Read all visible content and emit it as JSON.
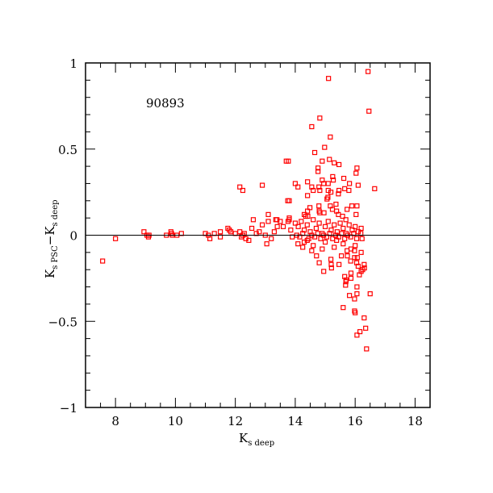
{
  "chart_data": {
    "type": "scatter",
    "title": "",
    "annotation": "90893",
    "xlabel": {
      "main": "K",
      "sub": "s deep"
    },
    "ylabel": {
      "main1": "K",
      "sub1": "s PSC",
      "dash": "−",
      "main2": "K",
      "sub2": "s deep"
    },
    "xlim": [
      7,
      18.5
    ],
    "ylim": [
      -1,
      1
    ],
    "xticks": [
      8,
      10,
      12,
      14,
      16,
      18
    ],
    "xtick_labels": [
      "8",
      "10",
      "12",
      "14",
      "16",
      "18"
    ],
    "yticks": [
      -1,
      -0.5,
      0,
      0.5,
      1
    ],
    "ytick_labels": [
      "−1",
      "−0.5",
      "0",
      "0.5",
      "1"
    ],
    "reference_line_y": 0,
    "marker": "open-square",
    "color": "#ff0000",
    "points": [
      [
        7.57,
        -0.15
      ],
      [
        8.0,
        -0.02
      ],
      [
        8.95,
        0.02
      ],
      [
        9.05,
        0.0
      ],
      [
        9.1,
        -0.01
      ],
      [
        9.12,
        0.0
      ],
      [
        9.7,
        0.0
      ],
      [
        9.85,
        0.02
      ],
      [
        9.87,
        0.01
      ],
      [
        9.9,
        0.0
      ],
      [
        10.05,
        0.0
      ],
      [
        10.2,
        0.01
      ],
      [
        11.0,
        0.01
      ],
      [
        11.1,
        0.0
      ],
      [
        11.15,
        -0.02
      ],
      [
        11.3,
        0.01
      ],
      [
        11.5,
        0.02
      ],
      [
        11.5,
        -0.01
      ],
      [
        11.75,
        0.04
      ],
      [
        11.8,
        0.03
      ],
      [
        11.85,
        0.02
      ],
      [
        12.0,
        0.01
      ],
      [
        12.15,
        0.28
      ],
      [
        12.25,
        0.26
      ],
      [
        12.15,
        0.02
      ],
      [
        12.2,
        -0.01
      ],
      [
        12.25,
        0.0
      ],
      [
        12.3,
        0.01
      ],
      [
        12.35,
        -0.02
      ],
      [
        12.45,
        -0.03
      ],
      [
        12.55,
        0.04
      ],
      [
        12.6,
        0.09
      ],
      [
        12.7,
        0.01
      ],
      [
        12.8,
        0.02
      ],
      [
        12.9,
        0.29
      ],
      [
        12.9,
        0.06
      ],
      [
        13.0,
        0.0
      ],
      [
        13.1,
        0.12
      ],
      [
        13.1,
        0.08
      ],
      [
        13.05,
        -0.05
      ],
      [
        13.2,
        -0.02
      ],
      [
        13.3,
        0.02
      ],
      [
        13.35,
        0.09
      ],
      [
        13.4,
        0.05
      ],
      [
        13.5,
        0.08
      ],
      [
        13.6,
        0.05
      ],
      [
        13.7,
        0.43
      ],
      [
        13.75,
        0.2
      ],
      [
        13.8,
        0.09
      ],
      [
        13.85,
        0.03
      ],
      [
        13.9,
        -0.01
      ],
      [
        13.39,
        0.09
      ],
      [
        13.8,
        0.1
      ],
      [
        13.76,
        0.08
      ],
      [
        16.43,
        0.95
      ],
      [
        15.11,
        0.91
      ],
      [
        16.46,
        0.72
      ],
      [
        14.82,
        0.68
      ],
      [
        14.55,
        0.63
      ],
      [
        15.17,
        0.57
      ],
      [
        14.98,
        0.51
      ],
      [
        14.65,
        0.48
      ],
      [
        14.9,
        0.43
      ],
      [
        15.14,
        0.44
      ],
      [
        13.77,
        0.43
      ],
      [
        14.76,
        0.39
      ],
      [
        14.76,
        0.37
      ],
      [
        15.3,
        0.42
      ],
      [
        15.46,
        0.41
      ],
      [
        16.06,
        0.39
      ],
      [
        16.03,
        0.36
      ],
      [
        15.25,
        0.34
      ],
      [
        15.27,
        0.32
      ],
      [
        14.9,
        0.32
      ],
      [
        14.0,
        0.3
      ],
      [
        14.09,
        0.28
      ],
      [
        14.41,
        0.31
      ],
      [
        14.95,
        0.3
      ],
      [
        15.1,
        0.3
      ],
      [
        15.1,
        0.26
      ],
      [
        15.62,
        0.33
      ],
      [
        15.81,
        0.3
      ],
      [
        16.1,
        0.29
      ],
      [
        14.55,
        0.28
      ],
      [
        14.79,
        0.28
      ],
      [
        14.6,
        0.26
      ],
      [
        14.82,
        0.26
      ],
      [
        15.46,
        0.26
      ],
      [
        15.65,
        0.27
      ],
      [
        15.79,
        0.26
      ],
      [
        16.65,
        0.27
      ],
      [
        13.8,
        0.2
      ],
      [
        14.41,
        0.23
      ],
      [
        15.09,
        0.22
      ],
      [
        15.44,
        0.24
      ],
      [
        15.19,
        0.25
      ],
      [
        15.06,
        0.21
      ],
      [
        14.49,
        0.16
      ],
      [
        14.79,
        0.17
      ],
      [
        15.17,
        0.17
      ],
      [
        15.36,
        0.18
      ],
      [
        15.89,
        0.17
      ],
      [
        16.06,
        0.17
      ],
      [
        14.41,
        0.14
      ],
      [
        14.8,
        0.14
      ],
      [
        14.82,
        0.13
      ],
      [
        15.24,
        0.15
      ],
      [
        15.44,
        0.12
      ],
      [
        15.73,
        0.15
      ],
      [
        16.03,
        0.12
      ],
      [
        14.3,
        0.12
      ],
      [
        14.35,
        0.11
      ],
      [
        14.42,
        0.11
      ],
      [
        14.96,
        0.13
      ],
      [
        15.38,
        0.14
      ],
      [
        15.58,
        0.11
      ],
      [
        15.69,
        0.09
      ],
      [
        14.0,
        0.07
      ],
      [
        14.1,
        0.05
      ],
      [
        14.2,
        0.08
      ],
      [
        14.3,
        0.03
      ],
      [
        14.4,
        0.06
      ],
      [
        14.5,
        0.02
      ],
      [
        14.6,
        0.09
      ],
      [
        14.7,
        0.04
      ],
      [
        14.8,
        0.07
      ],
      [
        14.9,
        0.01
      ],
      [
        15.0,
        0.05
      ],
      [
        15.1,
        0.08
      ],
      [
        15.2,
        0.03
      ],
      [
        15.3,
        0.06
      ],
      [
        15.4,
        0.02
      ],
      [
        15.5,
        0.07
      ],
      [
        15.6,
        0.04
      ],
      [
        15.7,
        0.01
      ],
      [
        15.8,
        0.06
      ],
      [
        15.9,
        0.03
      ],
      [
        16.0,
        0.05
      ],
      [
        16.1,
        0.02
      ],
      [
        16.2,
        0.04
      ],
      [
        14.05,
        0.0
      ],
      [
        14.15,
        -0.01
      ],
      [
        14.25,
        0.01
      ],
      [
        14.45,
        -0.02
      ],
      [
        14.55,
        0.0
      ],
      [
        14.65,
        -0.01
      ],
      [
        14.75,
        0.01
      ],
      [
        14.85,
        -0.02
      ],
      [
        14.95,
        0.0
      ],
      [
        15.05,
        -0.01
      ],
      [
        15.15,
        0.01
      ],
      [
        15.25,
        -0.02
      ],
      [
        15.35,
        0.0
      ],
      [
        15.45,
        -0.01
      ],
      [
        15.55,
        0.01
      ],
      [
        15.65,
        -0.02
      ],
      [
        15.75,
        0.0
      ],
      [
        15.85,
        -0.01
      ],
      [
        15.95,
        0.01
      ],
      [
        16.05,
        -0.02
      ],
      [
        16.19,
        0.01
      ],
      [
        16.23,
        -0.02
      ],
      [
        14.09,
        -0.05
      ],
      [
        14.25,
        -0.07
      ],
      [
        14.4,
        -0.03
      ],
      [
        14.55,
        -0.09
      ],
      [
        14.71,
        -0.12
      ],
      [
        14.8,
        -0.16
      ],
      [
        14.95,
        -0.21
      ],
      [
        15.19,
        -0.14
      ],
      [
        15.2,
        -0.17
      ],
      [
        15.21,
        -0.19
      ],
      [
        15.46,
        -0.17
      ],
      [
        15.38,
        -0.03
      ],
      [
        15.54,
        -0.12
      ],
      [
        15.73,
        -0.09
      ],
      [
        15.74,
        -0.12
      ],
      [
        15.86,
        -0.08
      ],
      [
        15.98,
        -0.09
      ],
      [
        15.98,
        -0.13
      ],
      [
        16.05,
        -0.16
      ],
      [
        16.07,
        -0.13
      ],
      [
        16.2,
        -0.21
      ],
      [
        16.25,
        -0.2
      ],
      [
        16.3,
        -0.17
      ],
      [
        16.31,
        -0.19
      ],
      [
        16.14,
        -0.23
      ],
      [
        15.65,
        -0.24
      ],
      [
        15.86,
        -0.22
      ],
      [
        15.86,
        -0.25
      ],
      [
        15.7,
        -0.26
      ],
      [
        15.69,
        -0.27
      ],
      [
        15.68,
        -0.29
      ],
      [
        16.06,
        -0.3
      ],
      [
        16.5,
        -0.34
      ],
      [
        15.81,
        -0.35
      ],
      [
        15.98,
        -0.37
      ],
      [
        16.06,
        -0.34
      ],
      [
        15.6,
        -0.42
      ],
      [
        15.98,
        -0.44
      ],
      [
        16.0,
        -0.45
      ],
      [
        16.3,
        -0.48
      ],
      [
        16.35,
        -0.54
      ],
      [
        16.16,
        -0.56
      ],
      [
        16.06,
        -0.58
      ],
      [
        16.38,
        -0.66
      ],
      [
        14.3,
        -0.04
      ],
      [
        14.6,
        -0.06
      ],
      [
        14.9,
        -0.08
      ],
      [
        15.0,
        -0.04
      ],
      [
        15.3,
        -0.07
      ],
      [
        15.6,
        -0.05
      ],
      [
        16.0,
        -0.06
      ],
      [
        16.2,
        -0.1
      ],
      [
        15.85,
        -0.15
      ],
      [
        16.1,
        -0.18
      ]
    ]
  }
}
